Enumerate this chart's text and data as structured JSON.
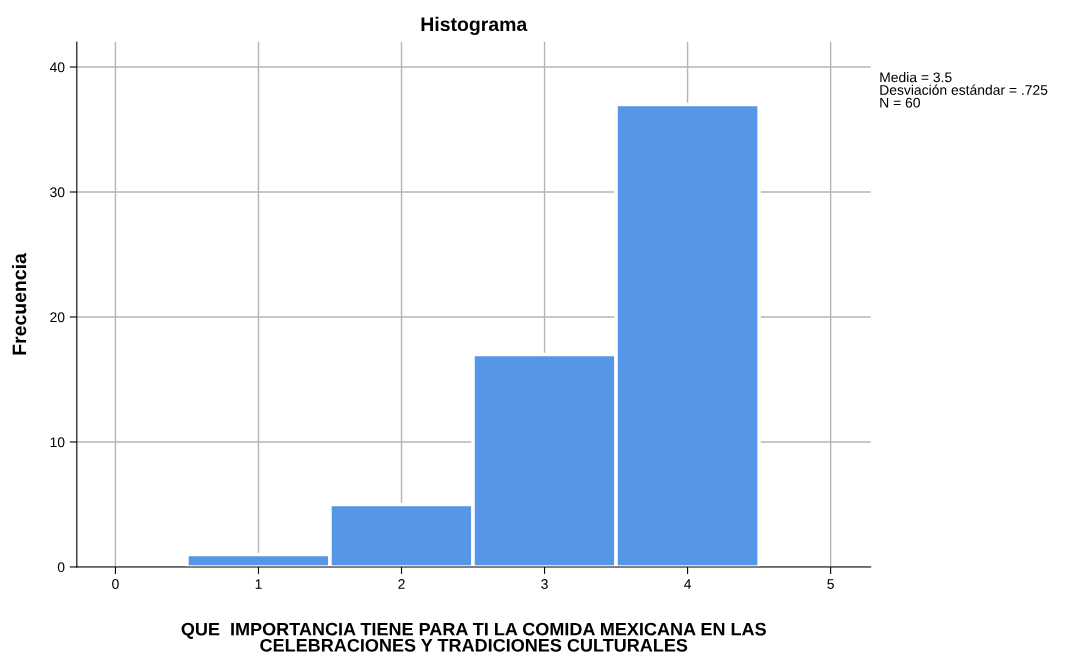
{
  "chart_data": {
    "type": "histogram",
    "title": "Histograma",
    "xlabel": "QUE  IMPORTANCIA TIENE PARA TI LA COMIDA MEXICANA EN LAS\nCELEBRACIONES Y TRADICIONES CULTURALES",
    "ylabel": "Frecuencia",
    "bins": [
      0.5,
      1.5,
      2.5,
      3.5,
      4.5
    ],
    "values": [
      1,
      5,
      17,
      37
    ],
    "color": "#5596e6",
    "xlim": [
      -0.27,
      5.28
    ],
    "ylim": [
      0,
      42
    ],
    "xticks": [
      0,
      1,
      2,
      3,
      4,
      5
    ],
    "yticks": [
      0,
      10,
      20,
      30,
      40
    ],
    "grid": true,
    "legend": false,
    "annotations": [
      "Media = 3.5",
      "Desviación estándar = .725",
      "N = 60"
    ]
  }
}
